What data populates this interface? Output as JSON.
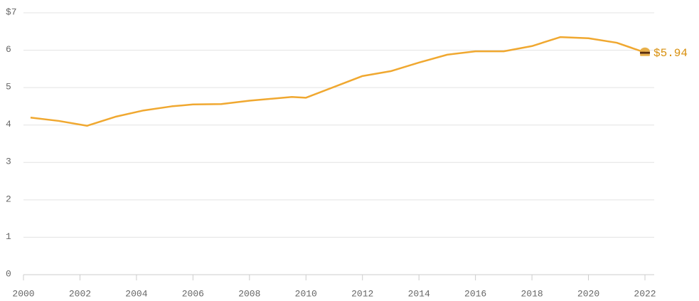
{
  "chart_data": {
    "type": "line",
    "x": [
      2000.25,
      2001.25,
      2002.25,
      2003.25,
      2004.25,
      2005.25,
      2006,
      2007,
      2008,
      2009.5,
      2010,
      2012,
      2013,
      2014,
      2015,
      2016,
      2017,
      2018,
      2019,
      2020,
      2021,
      2022
    ],
    "series": [
      {
        "color": "#f0a830",
        "values": [
          4.2,
          4.11,
          3.98,
          4.22,
          4.39,
          4.5,
          4.55,
          4.56,
          4.65,
          4.75,
          4.73,
          5.31,
          5.44,
          5.67,
          5.88,
          5.97,
          5.97,
          6.11,
          6.35,
          6.32,
          6.2,
          5.94
        ],
        "value_labels": [
          null,
          null,
          null,
          null,
          null,
          null,
          null,
          null,
          null,
          null,
          null,
          null,
          null,
          null,
          null,
          null,
          null,
          null,
          null,
          null,
          null,
          "$5.94"
        ],
        "label_color": "#d8900e"
      }
    ],
    "xlim": [
      2000,
      2022
    ],
    "xticks": [
      2000,
      2002,
      2004,
      2006,
      2008,
      2010,
      2012,
      2014,
      2016,
      2018,
      2020,
      2022
    ],
    "ylim": [
      0,
      7
    ],
    "yticks": [
      0,
      1,
      2,
      3,
      4,
      5,
      6,
      {
        "value": 7,
        "label": "$7"
      }
    ],
    "grid": true
  }
}
